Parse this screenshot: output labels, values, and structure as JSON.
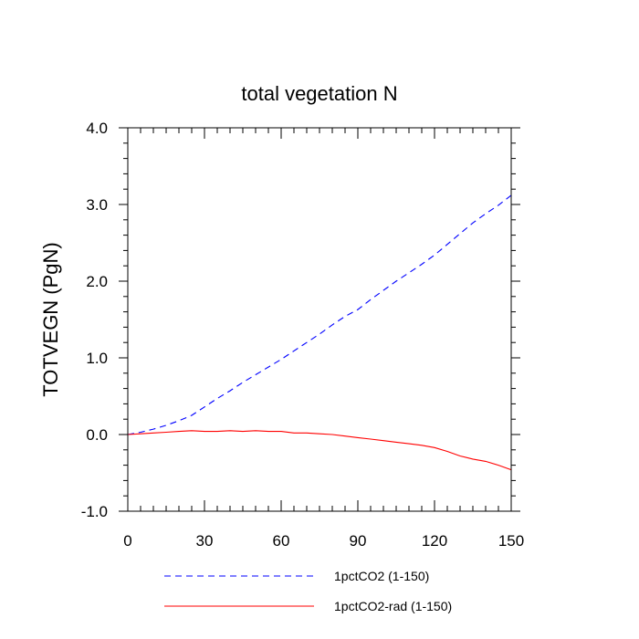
{
  "chart_data": {
    "type": "line",
    "title": "total vegetation N",
    "xlabel": "",
    "ylabel": "TOTVEGN  (PgN)",
    "xlim": [
      0,
      150
    ],
    "ylim": [
      -1.0,
      4.0
    ],
    "xticks": [
      0,
      30,
      60,
      90,
      120,
      150
    ],
    "xtick_labels": [
      "0",
      "30",
      "60",
      "90",
      "120",
      "150"
    ],
    "yticks": [
      -1.0,
      0.0,
      1.0,
      2.0,
      3.0,
      4.0
    ],
    "ytick_labels": [
      "-1.0",
      "0.0",
      "1.0",
      "2.0",
      "3.0",
      "4.0"
    ],
    "grid": false,
    "legend_position": "bottom",
    "series": [
      {
        "name": "1pctCO2 (1-150)",
        "color": "#0000ff",
        "dash": "dashed",
        "x": [
          0,
          5,
          10,
          15,
          20,
          25,
          30,
          35,
          40,
          45,
          50,
          55,
          60,
          65,
          70,
          75,
          80,
          85,
          90,
          95,
          100,
          105,
          110,
          115,
          120,
          125,
          130,
          135,
          140,
          145,
          150
        ],
        "y": [
          0.0,
          0.03,
          0.07,
          0.12,
          0.18,
          0.25,
          0.36,
          0.47,
          0.57,
          0.68,
          0.78,
          0.88,
          0.98,
          1.09,
          1.2,
          1.31,
          1.43,
          1.54,
          1.63,
          1.76,
          1.88,
          2.0,
          2.11,
          2.22,
          2.34,
          2.48,
          2.62,
          2.76,
          2.88,
          2.99,
          3.12
        ]
      },
      {
        "name": "1pctCO2-rad (1-150)",
        "color": "#ff0000",
        "dash": "solid",
        "x": [
          0,
          5,
          10,
          15,
          20,
          25,
          30,
          35,
          40,
          45,
          50,
          55,
          60,
          65,
          70,
          75,
          80,
          85,
          90,
          95,
          100,
          105,
          110,
          115,
          120,
          125,
          130,
          135,
          140,
          145,
          150
        ],
        "y": [
          0.0,
          0.01,
          0.02,
          0.03,
          0.04,
          0.05,
          0.04,
          0.04,
          0.05,
          0.04,
          0.05,
          0.04,
          0.04,
          0.02,
          0.02,
          0.01,
          0.0,
          -0.02,
          -0.04,
          -0.06,
          -0.08,
          -0.1,
          -0.12,
          -0.14,
          -0.17,
          -0.22,
          -0.28,
          -0.32,
          -0.35,
          -0.4,
          -0.46
        ]
      }
    ]
  }
}
